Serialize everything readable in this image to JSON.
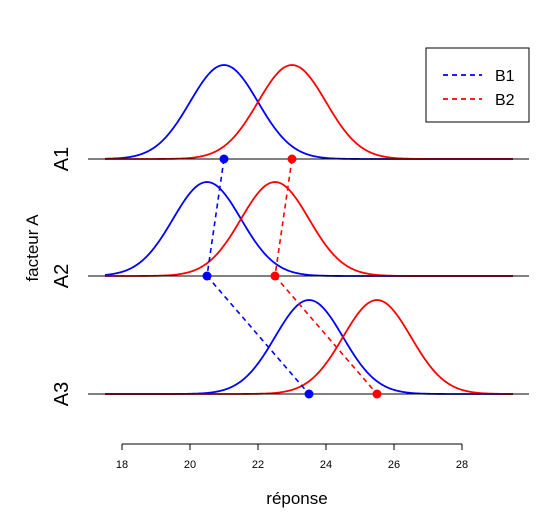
{
  "chart_data": {
    "type": "line",
    "xlabel": "réponse",
    "ylabel": "facteur A",
    "xlim": [
      17.5,
      29.5
    ],
    "xticks": [
      18,
      20,
      22,
      24,
      26,
      28
    ],
    "xtick_labels": [
      "18",
      "20",
      "22",
      "24",
      "26",
      "28"
    ],
    "levels": [
      "A1",
      "A2",
      "A3"
    ],
    "sd": 1,
    "series": [
      {
        "name": "B1",
        "color": "#0000ff",
        "means": [
          21,
          20.5,
          23.5
        ]
      },
      {
        "name": "B2",
        "color": "#ff0000",
        "means": [
          23,
          22.5,
          25.5
        ]
      }
    ],
    "legend": {
      "position": "top-right",
      "entries": [
        "B1",
        "B2"
      ]
    },
    "grid": false
  }
}
